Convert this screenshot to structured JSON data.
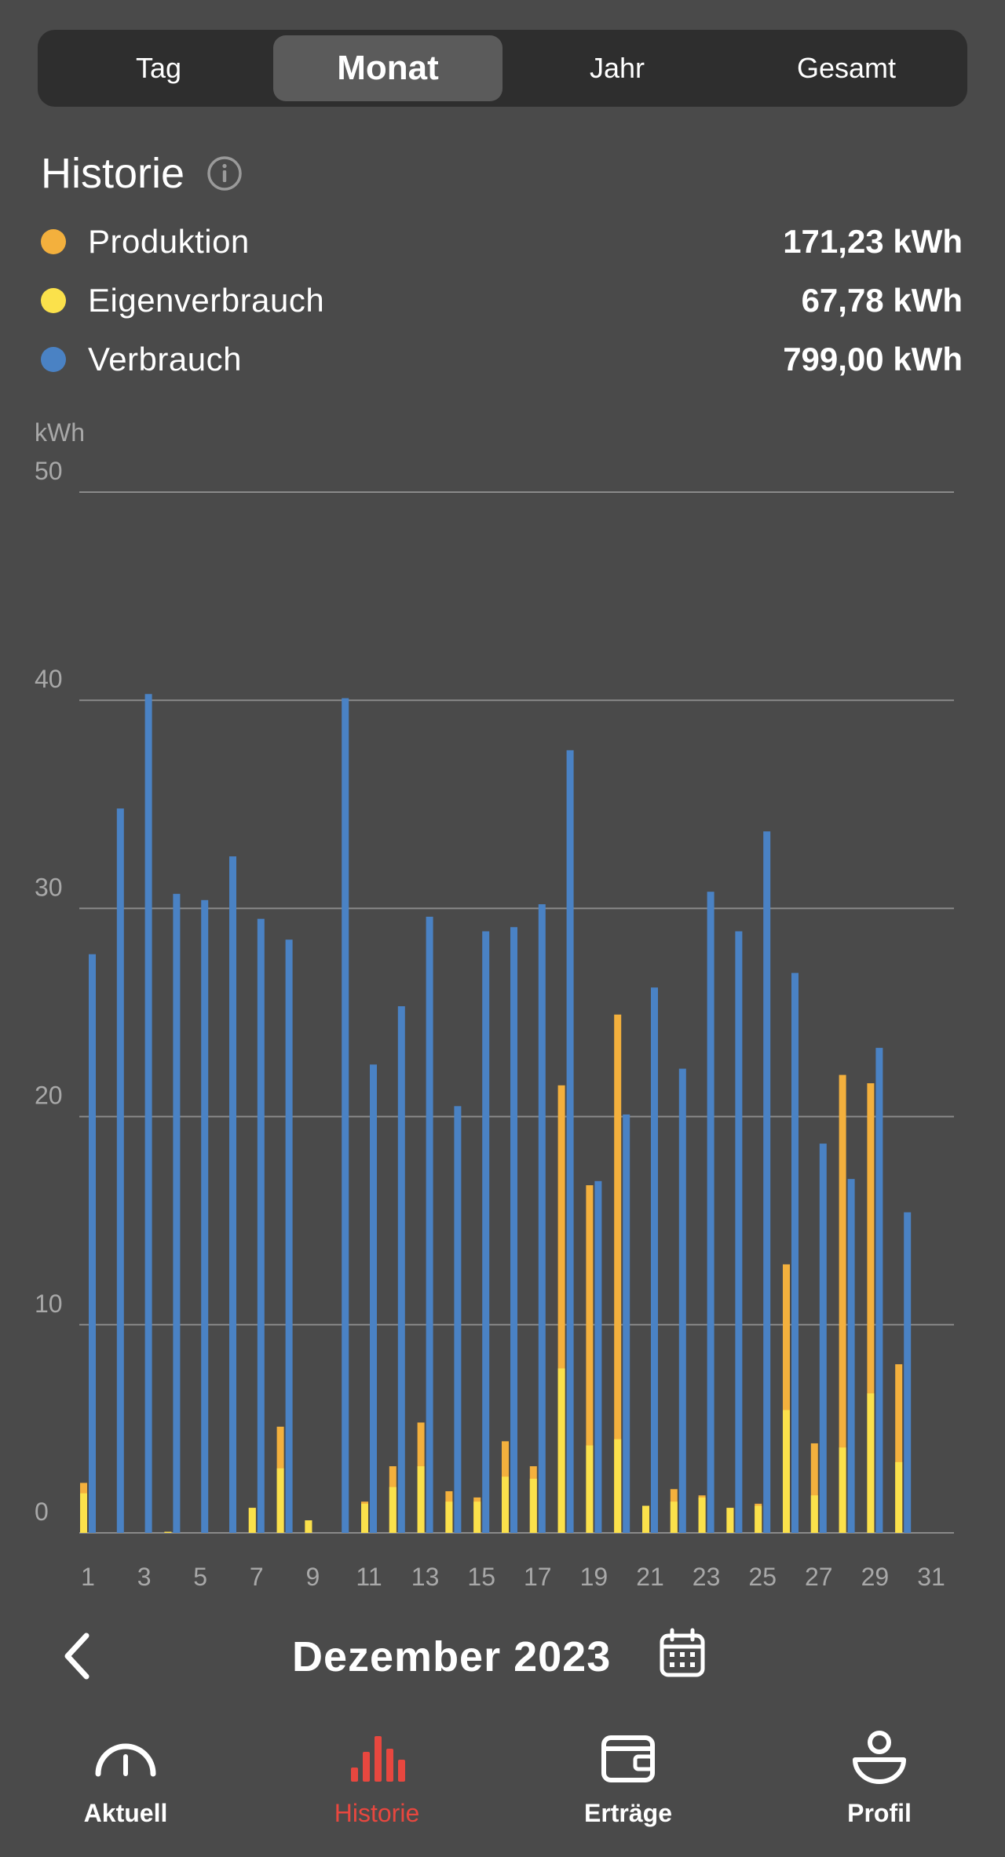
{
  "tabs": [
    {
      "label": "Tag",
      "active": false
    },
    {
      "label": "Monat",
      "active": true
    },
    {
      "label": "Jahr",
      "active": false
    },
    {
      "label": "Gesamt",
      "active": false
    }
  ],
  "history": {
    "title": "Historie",
    "legend": [
      {
        "label": "Produktion",
        "value": "171,23 kWh",
        "color": "#f3b03d"
      },
      {
        "label": "Eigenverbrauch",
        "value": "67,78 kWh",
        "color": "#fbe14b"
      },
      {
        "label": "Verbrauch",
        "value": "799,00 kWh",
        "color": "#4a82c4"
      }
    ]
  },
  "chart_data": {
    "type": "bar",
    "unit_label": "kWh",
    "ylim": [
      0,
      50
    ],
    "y_ticks": [
      "0",
      "10",
      "20",
      "30",
      "40",
      "50"
    ],
    "x_tick_labels": [
      "1",
      "3",
      "5",
      "7",
      "9",
      "11",
      "13",
      "15",
      "17",
      "19",
      "21",
      "23",
      "25",
      "27",
      "29",
      "31"
    ],
    "grid": true,
    "categories": [
      1,
      2,
      3,
      4,
      5,
      6,
      7,
      8,
      9,
      10,
      11,
      12,
      13,
      14,
      15,
      16,
      17,
      18,
      19,
      20,
      21,
      22,
      23,
      24,
      25,
      26,
      27,
      28,
      29,
      30,
      31
    ],
    "series": [
      {
        "name": "Produktion",
        "color": "#f3b03d",
        "values": [
          2.4,
          0,
          0,
          0.05,
          0,
          0,
          1.2,
          5.1,
          0.6,
          0,
          1.5,
          3.2,
          5.3,
          2.0,
          1.7,
          4.4,
          3.2,
          21.5,
          16.7,
          24.9,
          1.3,
          2.1,
          1.8,
          1.2,
          1.4,
          12.9,
          4.3,
          22.0,
          21.6,
          8.1,
          0
        ]
      },
      {
        "name": "Eigenverbrauch",
        "color": "#fbe14b",
        "values": [
          1.9,
          0,
          0,
          0.05,
          0,
          0,
          1.2,
          3.1,
          0.6,
          0,
          1.4,
          2.2,
          3.2,
          1.5,
          1.5,
          2.7,
          2.6,
          7.9,
          4.2,
          4.5,
          1.3,
          1.5,
          1.7,
          1.2,
          1.3,
          5.9,
          1.8,
          4.1,
          6.7,
          3.4,
          0
        ]
      },
      {
        "name": "Verbrauch",
        "color": "#4a82c4",
        "values": [
          27.8,
          34.8,
          40.3,
          30.7,
          30.4,
          32.5,
          29.5,
          28.5,
          0,
          40.1,
          22.5,
          25.3,
          29.6,
          20.5,
          28.9,
          29.1,
          30.2,
          37.6,
          16.9,
          20.1,
          26.2,
          22.3,
          30.8,
          28.9,
          33.7,
          26.9,
          18.7,
          17.0,
          23.3,
          15.4,
          0
        ]
      }
    ]
  },
  "month_nav": {
    "label": "Dezember 2023"
  },
  "tabbar": [
    {
      "label": "Aktuell",
      "icon": "gauge-icon",
      "active": false
    },
    {
      "label": "Historie",
      "icon": "bar-chart-icon",
      "active": true
    },
    {
      "label": "Erträge",
      "icon": "wallet-icon",
      "active": false
    },
    {
      "label": "Profil",
      "icon": "profile-icon",
      "active": false
    }
  ],
  "colors": {
    "accent": "#e8473f",
    "background": "#4a4a4a"
  }
}
